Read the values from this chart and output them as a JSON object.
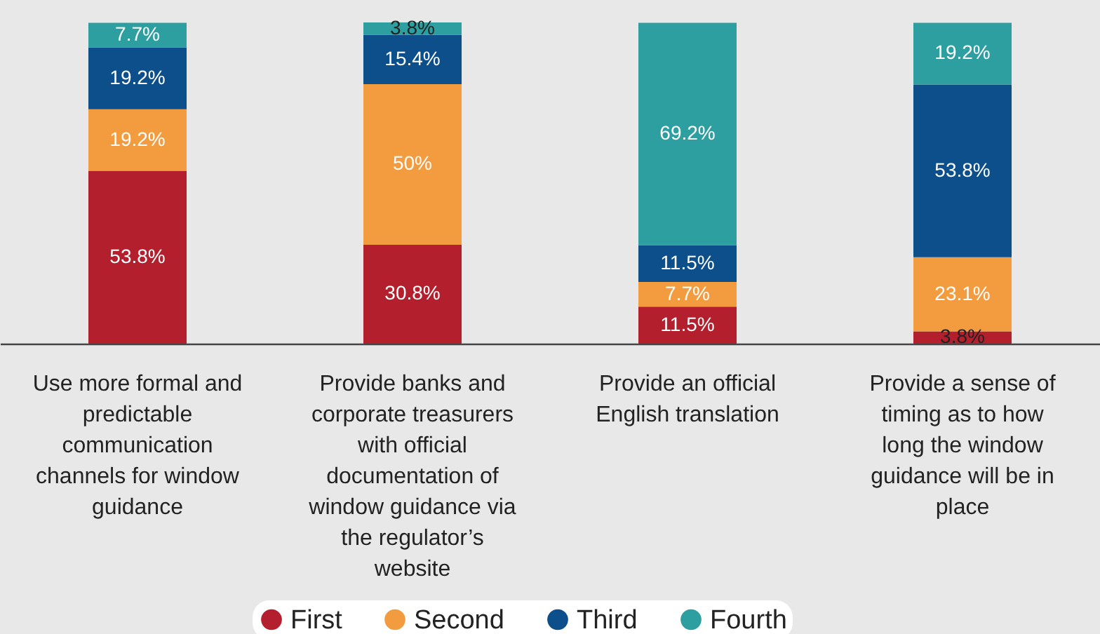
{
  "chart_data": {
    "type": "bar",
    "stacked": true,
    "legend": "bottom",
    "categories": [
      "Use more formal and predictable communication channels for window guidance",
      "Provide banks and corporate treasurers with official documentation of window guidance via the regulator’s website",
      "Provide an official English translation",
      "Provide a sense of timing as to how long the window guidance will be in place"
    ],
    "series": [
      {
        "name": "First",
        "color": "#b41f2e",
        "values": [
          53.8,
          30.8,
          11.5,
          3.8
        ],
        "value_labels": [
          "53.8%",
          "30.8%",
          "11.5%",
          "3.8%"
        ]
      },
      {
        "name": "Second",
        "color": "#f39c3f",
        "values": [
          19.2,
          50,
          7.7,
          23.1
        ],
        "value_labels": [
          "19.2%",
          "50%",
          "7.7%",
          "23.1%"
        ]
      },
      {
        "name": "Third",
        "color": "#0d4f8b",
        "values": [
          19.2,
          15.4,
          11.5,
          53.8
        ],
        "value_labels": [
          "19.2%",
          "15.4%",
          "11.5%",
          "53.8%"
        ]
      },
      {
        "name": "Fourth",
        "color": "#2e9fa0",
        "values": [
          7.7,
          3.8,
          69.2,
          19.2
        ],
        "value_labels": [
          "7.7%",
          "3.8%",
          "69.2%",
          "19.2%"
        ]
      }
    ]
  }
}
